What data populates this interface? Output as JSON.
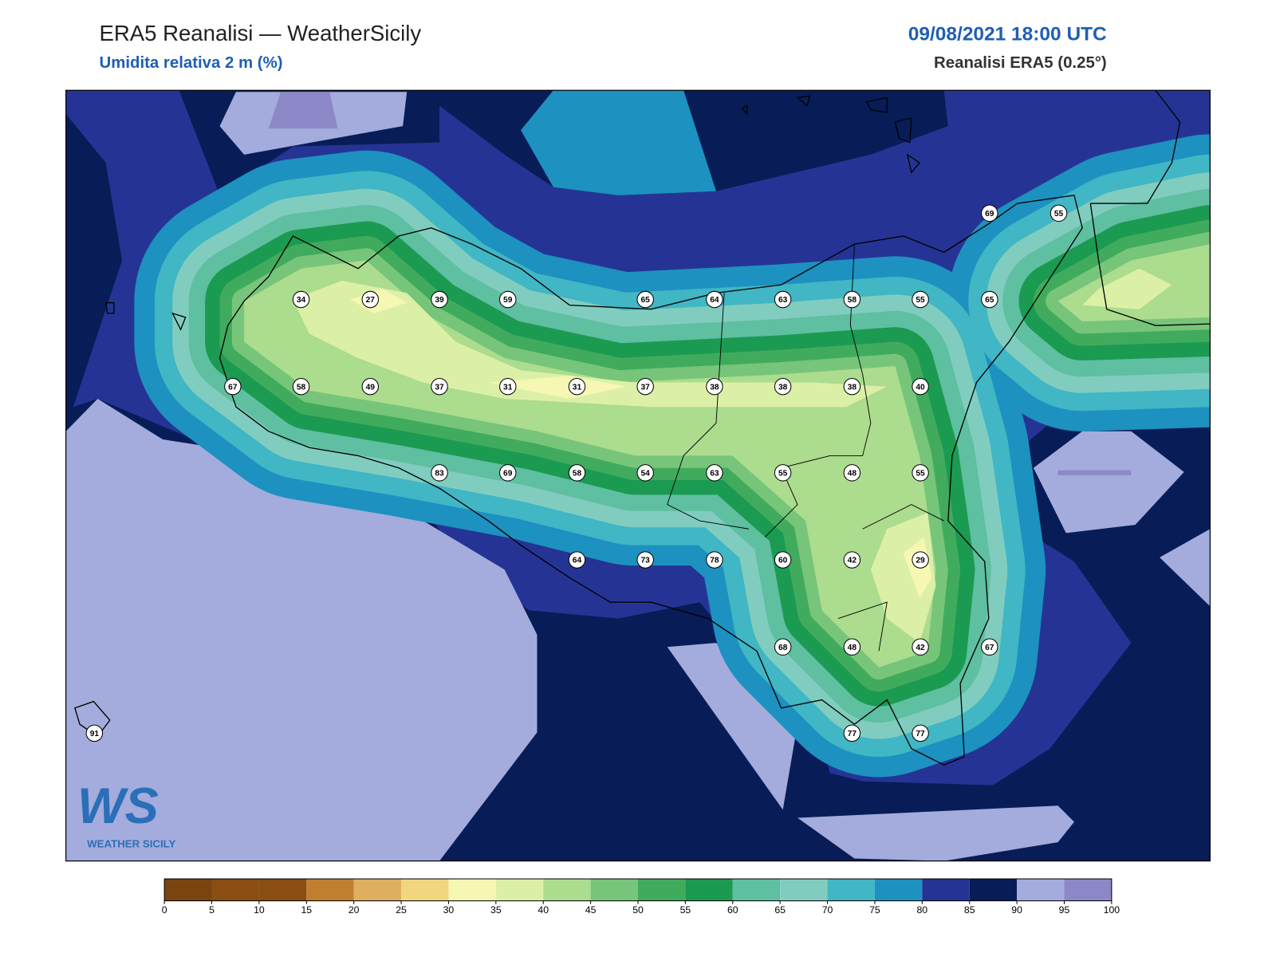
{
  "header": {
    "title": "ERA5 Reanalisi — WeatherSicily",
    "subtitle": "Umidita relativa 2 m (%)",
    "datetime": "09/08/2021 18:00 UTC",
    "source": "Reanalisi ERA5 (0.25°)"
  },
  "map": {
    "stations": [
      69,
      55,
      34,
      27,
      39,
      59,
      65,
      64,
      63,
      58,
      55,
      65,
      67,
      58,
      49,
      37,
      31,
      31,
      37,
      38,
      38,
      38,
      40,
      83,
      69,
      58,
      54,
      63,
      55,
      48,
      55,
      64,
      73,
      78,
      60,
      42,
      29,
      68,
      48,
      42,
      67,
      91,
      77,
      77
    ]
  },
  "colorbar": {
    "ticks": [
      0,
      5,
      10,
      15,
      20,
      25,
      30,
      35,
      40,
      45,
      50,
      55,
      60,
      65,
      70,
      75,
      80,
      85,
      90,
      95,
      100
    ],
    "colors": [
      "#7a4410",
      "#8a4d12",
      "#8a4d12",
      "#bf7f2e",
      "#deaf5f",
      "#f0d67e",
      "#f6f7b2",
      "#dbf0a6",
      "#acdc8e",
      "#77c57a",
      "#41ab5d",
      "#1b9a52",
      "#5fbfa1",
      "#80cdc0",
      "#41b6c4",
      "#1d91c0",
      "#253494",
      "#081d58",
      "#a3acdc",
      "#8c88c8"
    ]
  },
  "logo": {
    "mark": "WS",
    "name": "WEATHER SICILY"
  }
}
